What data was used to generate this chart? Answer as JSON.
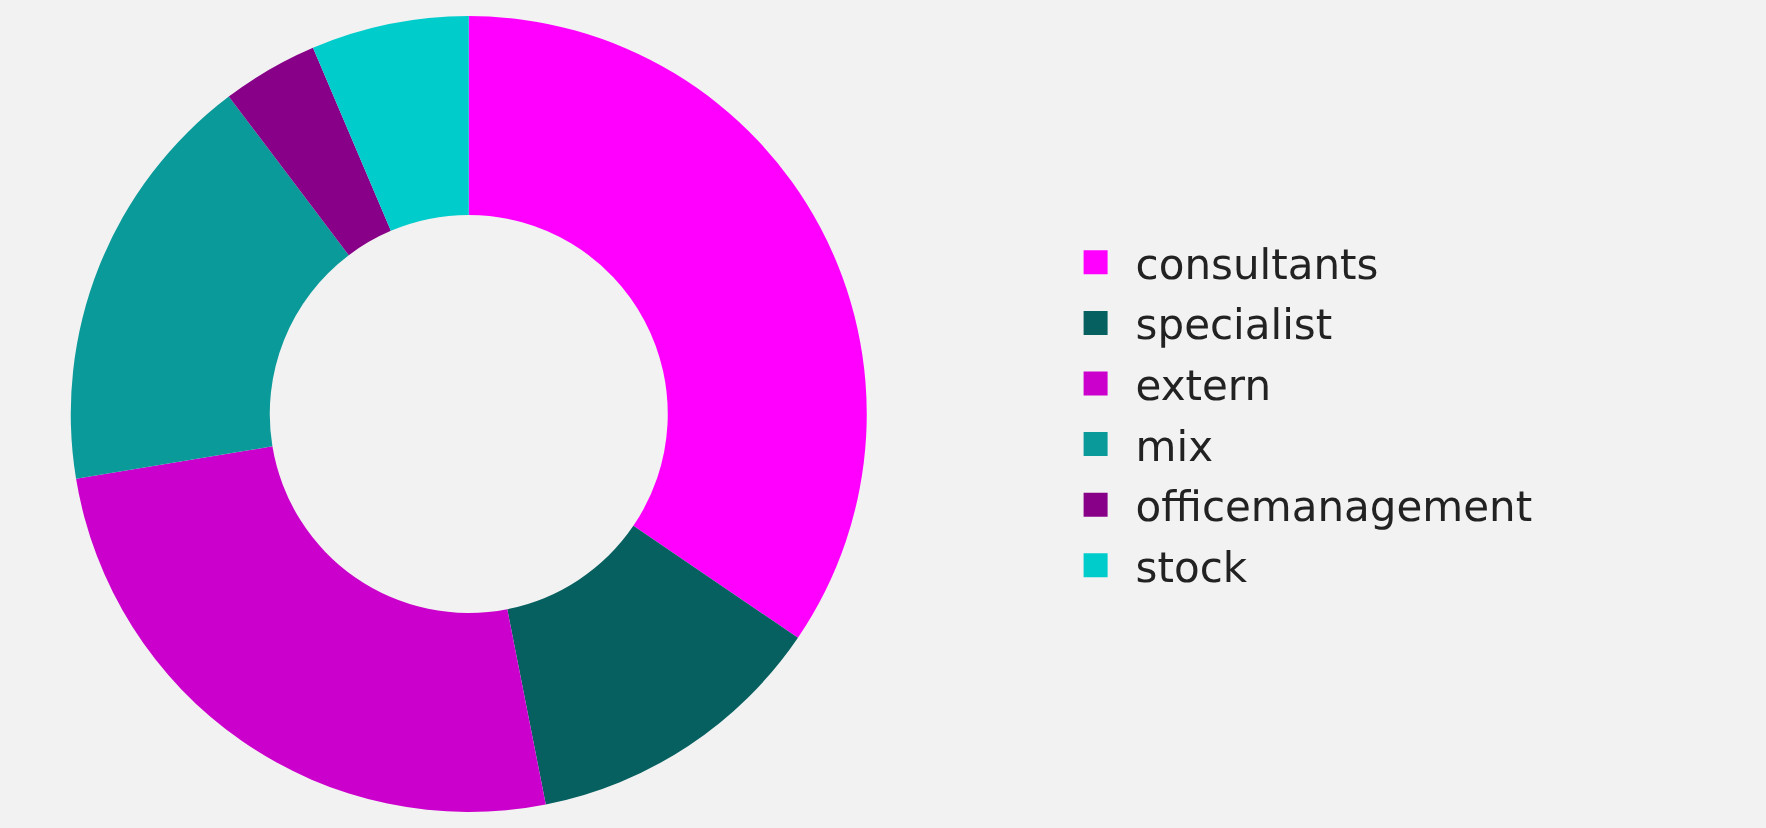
{
  "chart_data": {
    "type": "donut",
    "categories": [
      "consultants",
      "specialist",
      "extern",
      "mix",
      "officemanagement",
      "stock"
    ],
    "values": [
      34.5,
      12.4,
      25.5,
      17.3,
      3.9,
      6.4
    ],
    "colors": [
      "#ff00ff",
      "#066060",
      "#cc00cc",
      "#0a9a9a",
      "#880088",
      "#00cccc"
    ],
    "legend": "right"
  }
}
